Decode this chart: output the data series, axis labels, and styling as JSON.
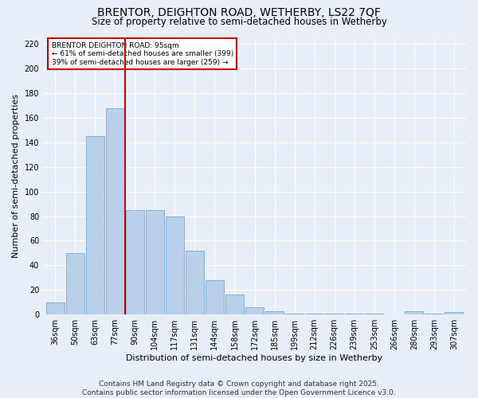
{
  "title1": "BRENTOR, DEIGHTON ROAD, WETHERBY, LS22 7QF",
  "title2": "Size of property relative to semi-detached houses in Wetherby",
  "xlabel": "Distribution of semi-detached houses by size in Wetherby",
  "ylabel": "Number of semi-detached properties",
  "categories": [
    "36sqm",
    "50sqm",
    "63sqm",
    "77sqm",
    "90sqm",
    "104sqm",
    "117sqm",
    "131sqm",
    "144sqm",
    "158sqm",
    "172sqm",
    "185sqm",
    "199sqm",
    "212sqm",
    "226sqm",
    "239sqm",
    "253sqm",
    "266sqm",
    "280sqm",
    "293sqm",
    "307sqm"
  ],
  "values": [
    10,
    50,
    145,
    168,
    85,
    85,
    80,
    52,
    28,
    16,
    6,
    3,
    1,
    1,
    1,
    1,
    1,
    0,
    3,
    1,
    2
  ],
  "bar_color": "#b8d0ea",
  "bar_edge_color": "#7aaad0",
  "background_color": "#e8eef8",
  "grid_color": "#ffffff",
  "vline_x": 3.5,
  "vline_color": "#cc0000",
  "annotation_text": "BRENTOR DEIGHTON ROAD: 95sqm\n← 61% of semi-detached houses are smaller (399)\n39% of semi-detached houses are larger (259) →",
  "annotation_box_color": "#ffffff",
  "annotation_box_edge": "#cc0000",
  "ylim": [
    0,
    225
  ],
  "yticks": [
    0,
    20,
    40,
    60,
    80,
    100,
    120,
    140,
    160,
    180,
    200,
    220
  ],
  "footer": "Contains HM Land Registry data © Crown copyright and database right 2025.\nContains public sector information licensed under the Open Government Licence v3.0.",
  "title_fontsize": 10,
  "subtitle_fontsize": 8.5,
  "axis_label_fontsize": 8,
  "tick_fontsize": 7,
  "footer_fontsize": 6.5,
  "annotation_fontsize": 6.5
}
